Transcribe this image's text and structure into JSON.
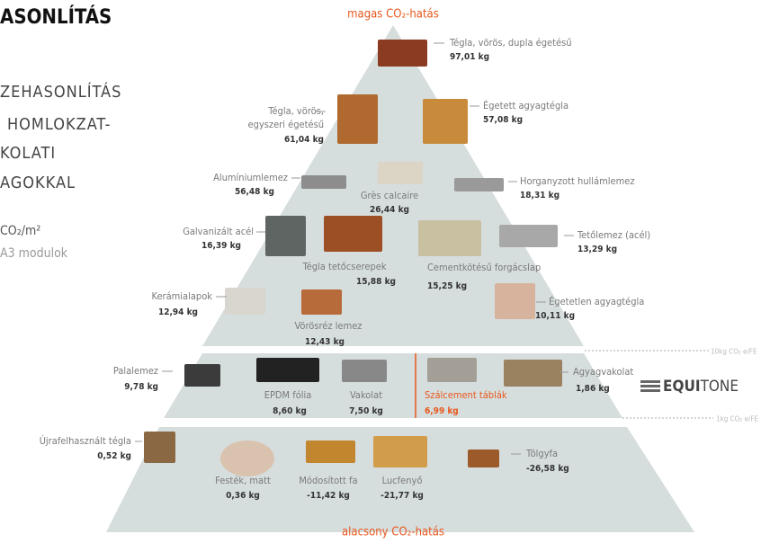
{
  "header": {
    "title": "ASONLÍTÁS",
    "lines": [
      "ZEHASONLÍTÁS",
      "HOMLOKZAT-",
      "KOLATI",
      "AGOKKAL"
    ],
    "unit": "CO₂/m²",
    "modules": "A3 modulok"
  },
  "top_label": "magas CO₂-hatás",
  "bottom_label": "alacsony CO₂-hatás",
  "thresholds": [
    "10kg CO₂ e/FE",
    "1kg CO₂ e/FE"
  ],
  "logo": {
    "bold": "EQUI",
    "light": "TONE"
  },
  "items": [
    {
      "label": "Tégla, vörös, dupla égetésű",
      "value": "97,01 kg"
    },
    {
      "label": [
        "Tégla, vörös,",
        "egyszeri égetésű"
      ],
      "value": "61,04 kg"
    },
    {
      "label": "Égetett agyagtégla",
      "value": "57,08 kg"
    },
    {
      "label": "Alumíniumlemez",
      "value": "56,48 kg"
    },
    {
      "label": "Grès calcaire",
      "value": "26,44 kg"
    },
    {
      "label": "Horganyzott hullámlemez",
      "value": "18,31 kg"
    },
    {
      "label": "Galvanizált acél",
      "value": "16,39 kg"
    },
    {
      "label": "Tégla tetőcserepek",
      "value": "15,88 kg"
    },
    {
      "label": "Tetőlemez (acél)",
      "value": "13,29 kg"
    },
    {
      "label": "Cementkötésű forgácslap",
      "value": "15,25 kg"
    },
    {
      "label": "Kerámialapok",
      "value": "12,94 kg"
    },
    {
      "label": "Vörösréz lemez",
      "value": "12,43 kg"
    },
    {
      "label": "Égetetlen agyagtégla",
      "value": "10,11 kg"
    },
    {
      "label": "Palalemez",
      "value": "9,78 kg"
    },
    {
      "label": "EPDM fólia",
      "value": "8,60 kg"
    },
    {
      "label": "Vakolat",
      "value": "7,50 kg"
    },
    {
      "label": "Szálcement táblák",
      "value": "6,99 kg"
    },
    {
      "label": "Agyagvakolat",
      "value": "1,86 kg"
    },
    {
      "label": "Újrafelhasznált tégla",
      "value": "0,52 kg"
    },
    {
      "label": "Festék, matt",
      "value": "0,36 kg"
    },
    {
      "label": "Módosított fa",
      "value": "-11,42 kg"
    },
    {
      "label": "Lucfenyő",
      "value": "-21,77 kg"
    },
    {
      "label": "Tölgyfa",
      "value": "-26,58 kg"
    }
  ]
}
